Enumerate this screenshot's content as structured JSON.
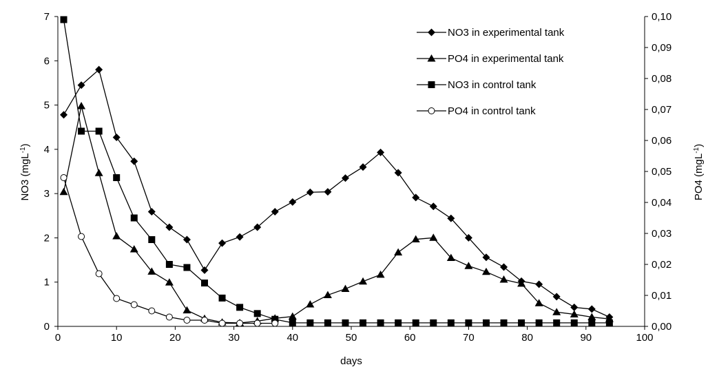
{
  "chart_data": {
    "type": "line",
    "xlabel": "days",
    "ylabel_left": {
      "text": "NO3 (mgL",
      "sup": "-1",
      "close": ")"
    },
    "ylabel_right": {
      "text": "PO4 (mgL",
      "sup": "-1",
      "close": ")"
    },
    "xlim": [
      0,
      100
    ],
    "ylim_left": [
      0,
      7
    ],
    "ylim_right": [
      0,
      0.1
    ],
    "x_ticks": [
      "0",
      "10",
      "20",
      "30",
      "40",
      "50",
      "60",
      "70",
      "80",
      "90",
      "100"
    ],
    "y_left_ticks": [
      "0",
      "1",
      "2",
      "3",
      "4",
      "5",
      "6",
      "7"
    ],
    "y_right_ticks": [
      "0,00",
      "0,01",
      "0,02",
      "0,03",
      "0,04",
      "0,05",
      "0,06",
      "0,07",
      "0,08",
      "0,09",
      "0,10"
    ],
    "grid": false,
    "legend_position": "top-right",
    "series": [
      {
        "name": "NO3 in experimental tank",
        "axis": "left",
        "marker": "diamond",
        "x": [
          1,
          4,
          7,
          10,
          13,
          16,
          19,
          22,
          25,
          28,
          31,
          34,
          37,
          40,
          43,
          46,
          49,
          52,
          55,
          58,
          61,
          64,
          67,
          70,
          73,
          76,
          79,
          82,
          85,
          88,
          91,
          94
        ],
        "y": [
          4.78,
          5.45,
          5.8,
          4.27,
          3.73,
          2.59,
          2.24,
          1.96,
          1.27,
          1.88,
          2.02,
          2.24,
          2.59,
          2.81,
          3.03,
          3.04,
          3.35,
          3.6,
          3.93,
          3.47,
          2.91,
          2.71,
          2.44,
          2.0,
          1.56,
          1.34,
          1.02,
          0.95,
          0.67,
          0.43,
          0.39,
          0.21
        ]
      },
      {
        "name": "PO4 in experimental tank",
        "axis": "right",
        "marker": "triangle",
        "x": [
          1,
          4,
          7,
          10,
          13,
          16,
          19,
          22,
          25,
          28,
          31,
          34,
          37,
          40,
          43,
          46,
          49,
          52,
          55,
          58,
          61,
          64,
          67,
          70,
          73,
          76,
          79,
          82,
          85,
          88,
          91,
          94
        ],
        "y": [
          0.0434,
          0.0711,
          0.0495,
          0.0291,
          0.0249,
          0.0177,
          0.0142,
          0.0052,
          0.0025,
          0.0013,
          0.0011,
          0.0017,
          0.0026,
          0.0032,
          0.0071,
          0.0101,
          0.0121,
          0.0145,
          0.0167,
          0.0239,
          0.0281,
          0.0286,
          0.0221,
          0.0195,
          0.0176,
          0.0151,
          0.0138,
          0.0075,
          0.0046,
          0.0039,
          0.003,
          0.0024
        ]
      },
      {
        "name": "NO3 in control tank",
        "axis": "left",
        "marker": "square",
        "x": [
          1,
          4,
          7,
          10,
          13,
          16,
          19,
          22,
          25,
          28,
          31,
          34,
          37,
          40,
          43,
          46,
          49,
          52,
          55,
          58,
          61,
          64,
          67,
          70,
          73,
          76,
          79,
          82,
          85,
          88,
          91,
          94
        ],
        "y": [
          6.93,
          4.41,
          4.41,
          3.36,
          2.45,
          1.96,
          1.4,
          1.33,
          0.98,
          0.64,
          0.43,
          0.29,
          0.16,
          0.08,
          0.08,
          0.08,
          0.08,
          0.08,
          0.08,
          0.08,
          0.08,
          0.08,
          0.08,
          0.08,
          0.08,
          0.08,
          0.08,
          0.08,
          0.08,
          0.08,
          0.08,
          0.08
        ]
      },
      {
        "name": "PO4 in control tank",
        "axis": "right",
        "marker": "circle-open",
        "x": [
          1,
          4,
          7,
          10,
          13,
          16,
          19,
          22,
          25,
          28,
          31,
          34,
          37
        ],
        "y": [
          0.048,
          0.029,
          0.017,
          0.009,
          0.007,
          0.005,
          0.003,
          0.002,
          0.002,
          0.001,
          0.001,
          0.001,
          0.001
        ]
      }
    ]
  }
}
